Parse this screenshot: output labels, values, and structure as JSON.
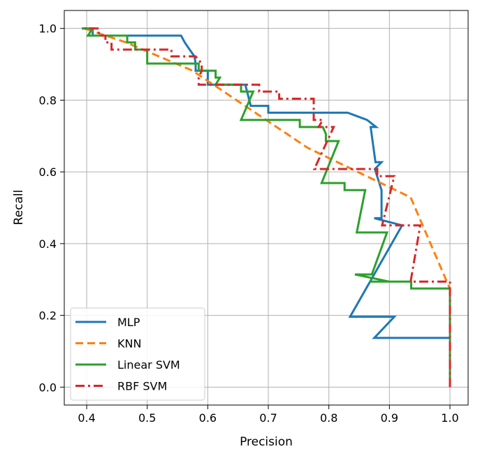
{
  "chart_data": {
    "type": "line",
    "title": "",
    "xlabel": "Precision",
    "ylabel": "Recall",
    "xlim": [
      0.363,
      1.03
    ],
    "ylim": [
      -0.05,
      1.05
    ],
    "x_ticks": [
      0.4,
      0.5,
      0.6,
      0.7,
      0.8,
      0.9,
      1.0
    ],
    "x_tick_labels": [
      "0.4",
      "0.5",
      "0.6",
      "0.7",
      "0.8",
      "0.9",
      "1.0"
    ],
    "y_ticks": [
      0.0,
      0.2,
      0.4,
      0.6,
      0.8,
      1.0
    ],
    "y_tick_labels": [
      "0.0",
      "0.2",
      "0.4",
      "0.6",
      "0.8",
      "1.0"
    ],
    "grid": true,
    "legend_position": "lower left",
    "series": [
      {
        "name": "MLP",
        "color": "#1f77b4",
        "dash": "solid",
        "points": [
          [
            1.0,
            0.0
          ],
          [
            1.0,
            0.137
          ],
          [
            0.875,
            0.137
          ],
          [
            0.908,
            0.196
          ],
          [
            0.835,
            0.196
          ],
          [
            0.921,
            0.451
          ],
          [
            0.875,
            0.471
          ],
          [
            0.887,
            0.471
          ],
          [
            0.887,
            0.549
          ],
          [
            0.876,
            0.608
          ],
          [
            0.887,
            0.627
          ],
          [
            0.877,
            0.627
          ],
          [
            0.869,
            0.725
          ],
          [
            0.878,
            0.725
          ],
          [
            0.863,
            0.745
          ],
          [
            0.831,
            0.765
          ],
          [
            0.7,
            0.765
          ],
          [
            0.7,
            0.784
          ],
          [
            0.671,
            0.784
          ],
          [
            0.662,
            0.843
          ],
          [
            0.63,
            0.843
          ],
          [
            0.6,
            0.843
          ],
          [
            0.6,
            0.882
          ],
          [
            0.58,
            0.882
          ],
          [
            0.58,
            0.902
          ],
          [
            0.578,
            0.922
          ],
          [
            0.57,
            0.941
          ],
          [
            0.562,
            0.961
          ],
          [
            0.556,
            0.98
          ],
          [
            0.41,
            0.98
          ],
          [
            0.41,
            1.0
          ],
          [
            0.392,
            1.0
          ]
        ]
      },
      {
        "name": "KNN",
        "color": "#ff7f0e",
        "dash": "dashed",
        "points": [
          [
            1.0,
            0.0
          ],
          [
            1.0,
            0.274
          ],
          [
            0.935,
            0.529
          ],
          [
            0.765,
            0.667
          ],
          [
            0.575,
            0.882
          ],
          [
            0.465,
            0.961
          ],
          [
            0.396,
            1.0
          ]
        ]
      },
      {
        "name": "Linear SVM",
        "color": "#2ca02c",
        "dash": "solid",
        "points": [
          [
            1.0,
            0.0
          ],
          [
            1.0,
            0.275
          ],
          [
            0.936,
            0.275
          ],
          [
            0.936,
            0.294
          ],
          [
            0.867,
            0.294
          ],
          [
            0.9,
            0.294
          ],
          [
            0.843,
            0.314
          ],
          [
            0.871,
            0.314
          ],
          [
            0.896,
            0.431
          ],
          [
            0.846,
            0.431
          ],
          [
            0.86,
            0.549
          ],
          [
            0.826,
            0.549
          ],
          [
            0.826,
            0.569
          ],
          [
            0.788,
            0.569
          ],
          [
            0.816,
            0.686
          ],
          [
            0.795,
            0.686
          ],
          [
            0.795,
            0.706
          ],
          [
            0.79,
            0.725
          ],
          [
            0.752,
            0.725
          ],
          [
            0.752,
            0.745
          ],
          [
            0.655,
            0.745
          ],
          [
            0.675,
            0.824
          ],
          [
            0.655,
            0.824
          ],
          [
            0.655,
            0.843
          ],
          [
            0.613,
            0.843
          ],
          [
            0.62,
            0.863
          ],
          [
            0.613,
            0.863
          ],
          [
            0.613,
            0.882
          ],
          [
            0.585,
            0.882
          ],
          [
            0.585,
            0.902
          ],
          [
            0.5,
            0.902
          ],
          [
            0.5,
            0.941
          ],
          [
            0.48,
            0.941
          ],
          [
            0.48,
            0.961
          ],
          [
            0.467,
            0.961
          ],
          [
            0.467,
            0.98
          ],
          [
            0.402,
            0.98
          ],
          [
            0.41,
            1.0
          ],
          [
            0.392,
            1.0
          ]
        ]
      },
      {
        "name": "RBF SVM",
        "color": "#d62728",
        "dash": "dashdot",
        "points": [
          [
            1.0,
            0.0
          ],
          [
            1.0,
            0.294
          ],
          [
            0.935,
            0.294
          ],
          [
            0.951,
            0.451
          ],
          [
            0.888,
            0.451
          ],
          [
            0.908,
            0.588
          ],
          [
            0.88,
            0.588
          ],
          [
            0.88,
            0.608
          ],
          [
            0.847,
            0.608
          ],
          [
            0.847,
            0.608
          ],
          [
            0.776,
            0.608
          ],
          [
            0.808,
            0.725
          ],
          [
            0.783,
            0.725
          ],
          [
            0.79,
            0.745
          ],
          [
            0.775,
            0.745
          ],
          [
            0.775,
            0.804
          ],
          [
            0.718,
            0.804
          ],
          [
            0.718,
            0.824
          ],
          [
            0.685,
            0.824
          ],
          [
            0.685,
            0.843
          ],
          [
            0.585,
            0.843
          ],
          [
            0.585,
            0.863
          ],
          [
            0.59,
            0.882
          ],
          [
            0.59,
            0.902
          ],
          [
            0.58,
            0.922
          ],
          [
            0.54,
            0.922
          ],
          [
            0.54,
            0.941
          ],
          [
            0.441,
            0.941
          ],
          [
            0.441,
            0.961
          ],
          [
            0.431,
            0.961
          ],
          [
            0.431,
            0.98
          ],
          [
            0.42,
            0.98
          ],
          [
            0.42,
            1.0
          ],
          [
            0.397,
            1.0
          ]
        ]
      }
    ]
  }
}
